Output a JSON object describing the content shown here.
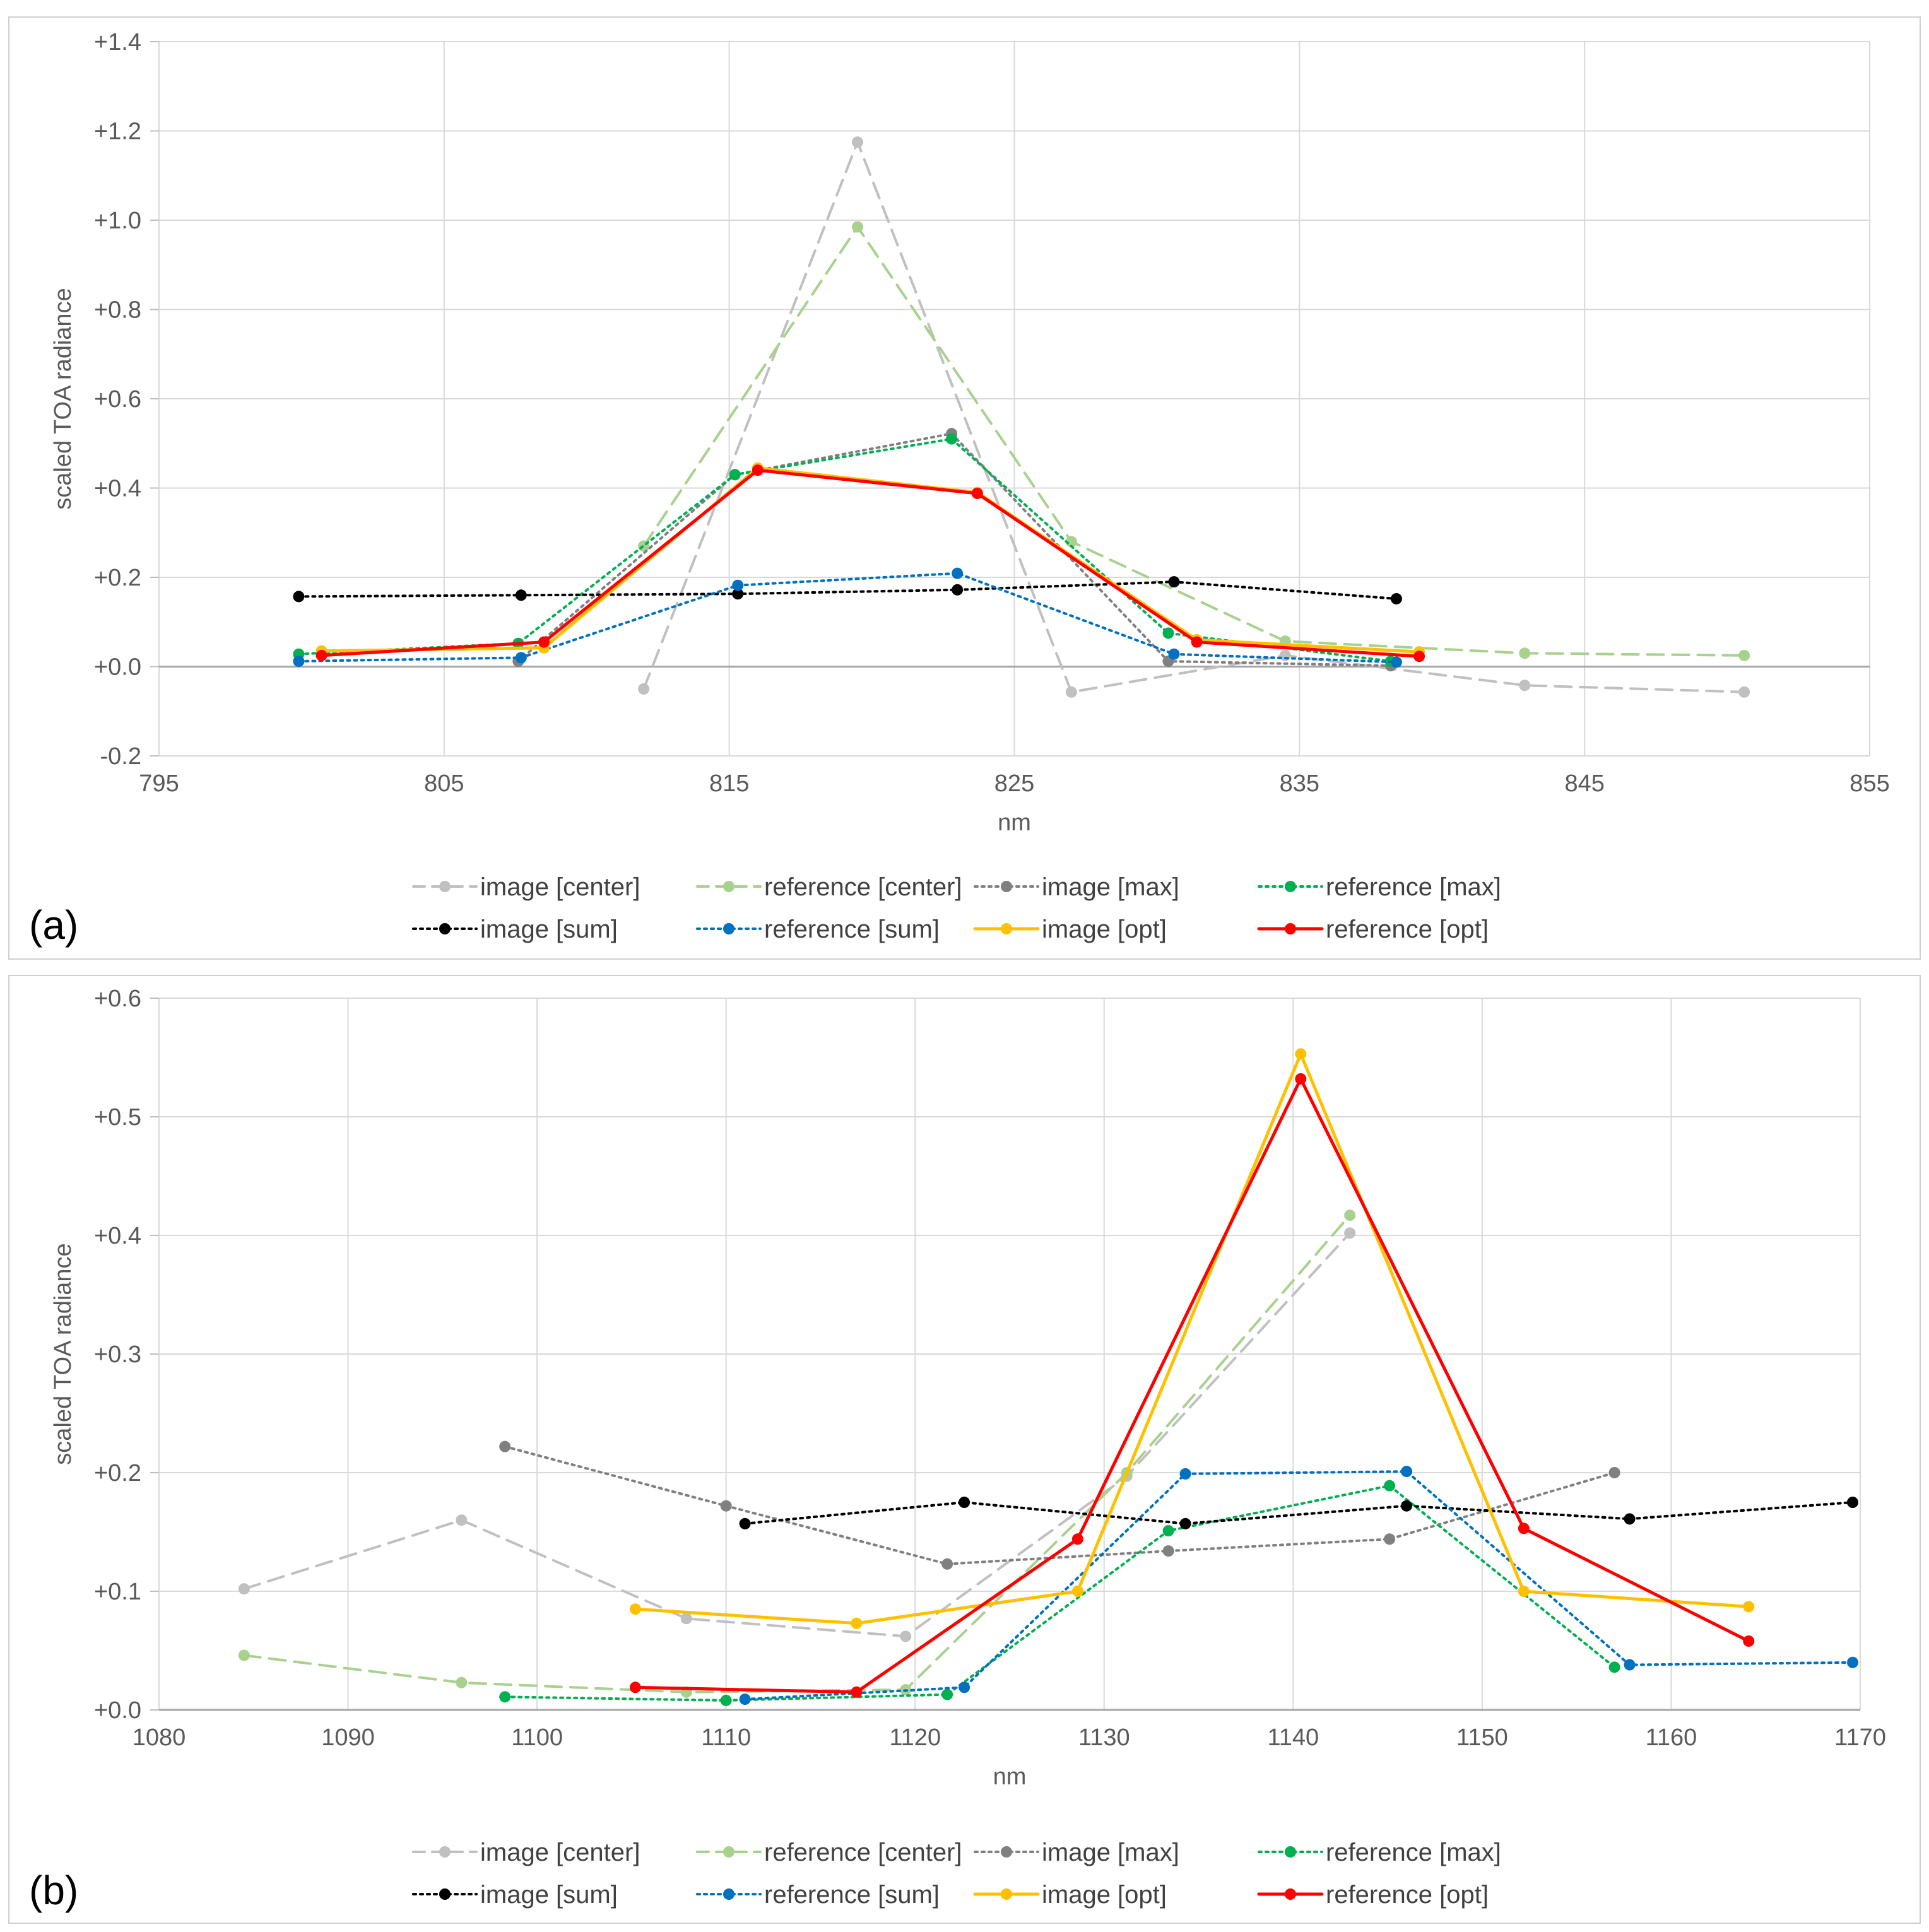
{
  "chart_data": [
    {
      "panel_label": "(a)",
      "type": "line",
      "xlabel": "nm",
      "ylabel": "scaled TOA radiance",
      "xlim": [
        795,
        855
      ],
      "ylim": [
        -0.2,
        1.4
      ],
      "xticks": [
        795,
        805,
        815,
        825,
        835,
        845,
        855
      ],
      "yticks": [
        -0.2,
        0.0,
        0.2,
        0.4,
        0.6,
        0.8,
        1.0,
        1.2,
        1.4
      ],
      "ytick_labels": [
        "-0.2",
        "+0.0",
        "+0.2",
        "+0.4",
        "+0.6",
        "+0.8",
        "+1.0",
        "+1.2",
        "+1.4"
      ],
      "grid": true,
      "legend_position": "bottom",
      "series": [
        {
          "name": "image [center]",
          "color": "#c0c0c0",
          "style": "dashed",
          "x": [
            812.0,
            819.5,
            827.0,
            834.5,
            842.9,
            850.6
          ],
          "y": [
            -0.05,
            1.175,
            -0.057,
            0.025,
            -0.042,
            -0.057
          ]
        },
        {
          "name": "reference [center]",
          "color": "#a9d18e",
          "style": "dashed",
          "x": [
            812.0,
            819.5,
            827.0,
            834.5,
            842.9,
            850.6
          ],
          "y": [
            0.27,
            0.985,
            0.28,
            0.057,
            0.03,
            0.025
          ]
        },
        {
          "name": "image [max]",
          "color": "#808080",
          "style": "dotted",
          "x": [
            807.6,
            815.2,
            822.8,
            830.4,
            838.2
          ],
          "y": [
            0.012,
            0.43,
            0.522,
            0.012,
            0.002
          ]
        },
        {
          "name": "reference [max]",
          "color": "#00b050",
          "style": "dotted",
          "x": [
            799.9,
            807.6,
            815.2,
            822.8,
            830.4,
            838.2
          ],
          "y": [
            0.028,
            0.052,
            0.43,
            0.51,
            0.075,
            0.012
          ]
        },
        {
          "name": "image [sum]",
          "color": "#000000",
          "style": "dotted",
          "x": [
            799.9,
            807.7,
            815.3,
            823.0,
            830.6,
            838.4
          ],
          "y": [
            0.157,
            0.16,
            0.163,
            0.172,
            0.19,
            0.152
          ]
        },
        {
          "name": "reference [sum]",
          "color": "#0070c0",
          "style": "dotted",
          "x": [
            799.9,
            807.7,
            815.3,
            823.0,
            830.6,
            838.4
          ],
          "y": [
            0.012,
            0.02,
            0.182,
            0.209,
            0.028,
            0.01
          ]
        },
        {
          "name": "image [opt]",
          "color": "#ffc000",
          "style": "solid",
          "x": [
            800.7,
            808.5,
            816.0,
            823.7,
            831.4,
            839.2
          ],
          "y": [
            0.035,
            0.042,
            0.445,
            0.39,
            0.06,
            0.033
          ]
        },
        {
          "name": "reference [opt]",
          "color": "#ff0000",
          "style": "solid",
          "x": [
            800.7,
            808.5,
            816.0,
            823.7,
            831.4,
            839.2
          ],
          "y": [
            0.025,
            0.055,
            0.44,
            0.388,
            0.055,
            0.023
          ]
        }
      ]
    },
    {
      "panel_label": "(b)",
      "type": "line",
      "xlabel": "nm",
      "ylabel": "scaled TOA radiance",
      "xlim": [
        1080,
        1170
      ],
      "ylim": [
        0.0,
        0.6
      ],
      "xticks": [
        1080,
        1090,
        1100,
        1110,
        1120,
        1130,
        1140,
        1150,
        1160,
        1170
      ],
      "yticks": [
        0.0,
        0.1,
        0.2,
        0.3,
        0.4,
        0.5,
        0.6
      ],
      "ytick_labels": [
        "+0.0",
        "+0.1",
        "+0.2",
        "+0.3",
        "+0.4",
        "+0.5",
        "+0.6"
      ],
      "grid": true,
      "legend_position": "bottom",
      "series": [
        {
          "name": "image [center]",
          "color": "#c0c0c0",
          "style": "dashed",
          "x": [
            1084.5,
            1096.0,
            1107.9,
            1119.5,
            1131.2,
            1143.0
          ],
          "y": [
            0.102,
            0.16,
            0.077,
            0.062,
            0.197,
            0.402
          ]
        },
        {
          "name": "reference [center]",
          "color": "#a9d18e",
          "style": "dashed",
          "x": [
            1084.5,
            1096.0,
            1107.9,
            1119.5,
            1131.2,
            1143.0
          ],
          "y": [
            0.046,
            0.023,
            0.015,
            0.017,
            0.2,
            0.417
          ]
        },
        {
          "name": "image [max]",
          "color": "#808080",
          "style": "dotted",
          "x": [
            1098.3,
            1110.0,
            1121.7,
            1133.4,
            1145.1,
            1157.0
          ],
          "y": [
            0.222,
            0.172,
            0.123,
            0.134,
            0.144,
            0.2
          ]
        },
        {
          "name": "reference [max]",
          "color": "#00b050",
          "style": "dotted",
          "x": [
            1098.3,
            1110.0,
            1121.7,
            1133.4,
            1145.1,
            1157.0
          ],
          "y": [
            0.011,
            0.008,
            0.013,
            0.151,
            0.189,
            0.036
          ]
        },
        {
          "name": "image [sum]",
          "color": "#000000",
          "style": "dotted",
          "x": [
            1111.0,
            1122.6,
            1134.3,
            1146.0,
            1157.8,
            1169.6
          ],
          "y": [
            0.157,
            0.175,
            0.157,
            0.172,
            0.161,
            0.175
          ]
        },
        {
          "name": "reference [sum]",
          "color": "#0070c0",
          "style": "dotted",
          "x": [
            1111.0,
            1122.6,
            1134.3,
            1146.0,
            1157.8,
            1169.6
          ],
          "y": [
            0.009,
            0.019,
            0.199,
            0.201,
            0.038,
            0.04
          ]
        },
        {
          "name": "image [opt]",
          "color": "#ffc000",
          "style": "solid",
          "x": [
            1105.2,
            1116.9,
            1128.6,
            1140.4,
            1152.2,
            1164.1
          ],
          "y": [
            0.085,
            0.073,
            0.1,
            0.553,
            0.1,
            0.087
          ]
        },
        {
          "name": "reference [opt]",
          "color": "#ff0000",
          "style": "solid",
          "x": [
            1105.2,
            1116.9,
            1128.6,
            1140.4,
            1152.2,
            1164.1
          ],
          "y": [
            0.019,
            0.015,
            0.144,
            0.532,
            0.153,
            0.058
          ]
        }
      ]
    }
  ]
}
